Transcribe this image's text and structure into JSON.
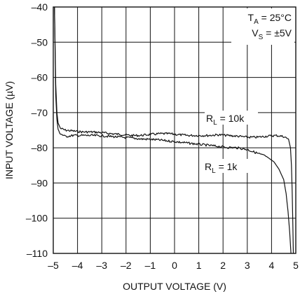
{
  "chart_data": {
    "type": "line",
    "title": "",
    "xlabel": "OUTPUT VOLTAGE (V)",
    "ylabel": "INPUT VOLTAGE (µV)",
    "xlim": [
      -5,
      5
    ],
    "ylim": [
      -110,
      -40
    ],
    "x_ticks": [
      -5,
      -4,
      -3,
      -2,
      -1,
      0,
      1,
      2,
      3,
      4,
      5
    ],
    "x_tick_labels": [
      "–5",
      "–4",
      "–3",
      "–2",
      "–1",
      "0",
      "1",
      "2",
      "3",
      "4",
      "5"
    ],
    "y_ticks": [
      -40,
      -50,
      -60,
      -70,
      -80,
      -90,
      -100,
      -110
    ],
    "y_tick_labels": [
      "–40",
      "–50",
      "–60",
      "–70",
      "–80",
      "–90",
      "–100",
      "–110"
    ],
    "grid": true,
    "conditions": {
      "ta": {
        "main": "T",
        "sub": "A",
        "rest": " = 25°C"
      },
      "vs": {
        "main": "V",
        "sub": "S",
        "rest": " = ±5V"
      }
    },
    "series": [
      {
        "label": {
          "main": "R",
          "sub": "L",
          "rest": " = 10k"
        },
        "color": "#111111",
        "x": [
          -4.95,
          -4.9,
          -4.85,
          -4.8,
          -4.7,
          -4.5,
          -4.2,
          -3.8,
          -3.4,
          -3.0,
          -2.6,
          -2.2,
          -1.8,
          -1.4,
          -1.0,
          -0.6,
          -0.2,
          0.2,
          0.6,
          1.0,
          1.4,
          1.8,
          2.2,
          2.6,
          3.0,
          3.4,
          3.8,
          4.2,
          4.5,
          4.7,
          4.78,
          4.82,
          4.85,
          4.88,
          4.9
        ],
        "y": [
          -40,
          -62,
          -70,
          -73,
          -74.5,
          -75,
          -75.2,
          -75.5,
          -75.5,
          -75.7,
          -76,
          -76.2,
          -76.5,
          -76.5,
          -76.2,
          -76,
          -76,
          -76.3,
          -76.5,
          -76.5,
          -76.5,
          -76.3,
          -76.5,
          -76.7,
          -77,
          -77,
          -76.7,
          -76.5,
          -76.8,
          -77.5,
          -80,
          -85,
          -92,
          -102,
          -110
        ]
      },
      {
        "label": {
          "main": "R",
          "sub": "L",
          "rest": " = 1k"
        },
        "color": "#111111",
        "x": [
          -4.95,
          -4.9,
          -4.85,
          -4.8,
          -4.7,
          -4.5,
          -4.2,
          -3.8,
          -3.4,
          -3.0,
          -2.6,
          -2.2,
          -1.8,
          -1.4,
          -1.0,
          -0.6,
          -0.2,
          0.2,
          0.6,
          1.0,
          1.4,
          1.8,
          2.2,
          2.6,
          3.0,
          3.4,
          3.8,
          4.1,
          4.3,
          4.5,
          4.6,
          4.68,
          4.75,
          4.8
        ],
        "y": [
          -40,
          -65,
          -72,
          -75,
          -76,
          -76.8,
          -76.5,
          -76.5,
          -76.5,
          -76.6,
          -76.8,
          -77,
          -77.2,
          -77.5,
          -77.6,
          -77.8,
          -78.1,
          -78.4,
          -78.7,
          -79,
          -79.3,
          -79.6,
          -79.9,
          -80,
          -80.5,
          -81.5,
          -82.5,
          -84,
          -86,
          -89,
          -93,
          -98,
          -104,
          -110
        ]
      }
    ]
  }
}
